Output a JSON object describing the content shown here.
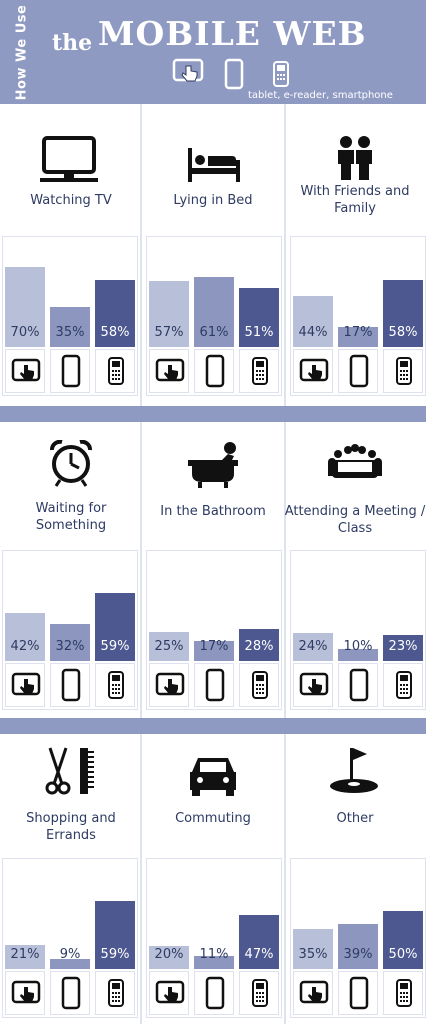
{
  "header": {
    "side_text": "How We Use",
    "title_the": "the",
    "title_main": "MOBILE WEB",
    "subtitle": "tablet, e-reader, smartphone",
    "icons": [
      "tablet-hand-icon",
      "e-reader-icon",
      "smartphone-icon"
    ]
  },
  "colors": {
    "header_bg": "#8f9ac2",
    "tablet": "#b8bfd9",
    "ereader": "#8d96be",
    "smartphone": "#4d5790",
    "text": "#2e3b63"
  },
  "chart_data": [
    {
      "type": "bar",
      "title": "Watching TV",
      "icon": "tv-icon",
      "categories": [
        "tablet",
        "e-reader",
        "smartphone"
      ],
      "values": [
        70,
        35,
        58
      ],
      "labels": [
        "70%",
        "35%",
        "58%"
      ]
    },
    {
      "type": "bar",
      "title": "Lying in Bed",
      "icon": "bed-icon",
      "categories": [
        "tablet",
        "e-reader",
        "smartphone"
      ],
      "values": [
        57,
        61,
        51
      ],
      "labels": [
        "57%",
        "61%",
        "51%"
      ]
    },
    {
      "type": "bar",
      "title": "With Friends and Family",
      "icon": "people-icon",
      "categories": [
        "tablet",
        "e-reader",
        "smartphone"
      ],
      "values": [
        44,
        17,
        58
      ],
      "labels": [
        "44%",
        "17%",
        "58%"
      ]
    },
    {
      "type": "bar",
      "title": "Waiting for Something",
      "icon": "alarm-clock-icon",
      "categories": [
        "tablet",
        "e-reader",
        "smartphone"
      ],
      "values": [
        42,
        32,
        59
      ],
      "labels": [
        "42%",
        "32%",
        "59%"
      ]
    },
    {
      "type": "bar",
      "title": "In the Bathroom",
      "icon": "bathtub-icon",
      "categories": [
        "tablet",
        "e-reader",
        "smartphone"
      ],
      "values": [
        25,
        17,
        28
      ],
      "labels": [
        "25%",
        "17%",
        "28%"
      ]
    },
    {
      "type": "bar",
      "title": "Attending a Meeting / Class",
      "icon": "meeting-icon",
      "categories": [
        "tablet",
        "e-reader",
        "smartphone"
      ],
      "values": [
        24,
        10,
        23
      ],
      "labels": [
        "24%",
        "10%",
        "23%"
      ]
    },
    {
      "type": "bar",
      "title": "Shopping and Errands",
      "icon": "scissors-comb-icon",
      "categories": [
        "tablet",
        "e-reader",
        "smartphone"
      ],
      "values": [
        21,
        9,
        59
      ],
      "labels": [
        "21%",
        "9%",
        "59%"
      ]
    },
    {
      "type": "bar",
      "title": "Commuting",
      "icon": "car-icon",
      "categories": [
        "tablet",
        "e-reader",
        "smartphone"
      ],
      "values": [
        20,
        11,
        47
      ],
      "labels": [
        "20%",
        "11%",
        "47%"
      ]
    },
    {
      "type": "bar",
      "title": "Other",
      "icon": "golf-flag-icon",
      "categories": [
        "tablet",
        "e-reader",
        "smartphone"
      ],
      "values": [
        35,
        39,
        50
      ],
      "labels": [
        "35%",
        "39%",
        "50%"
      ]
    }
  ]
}
